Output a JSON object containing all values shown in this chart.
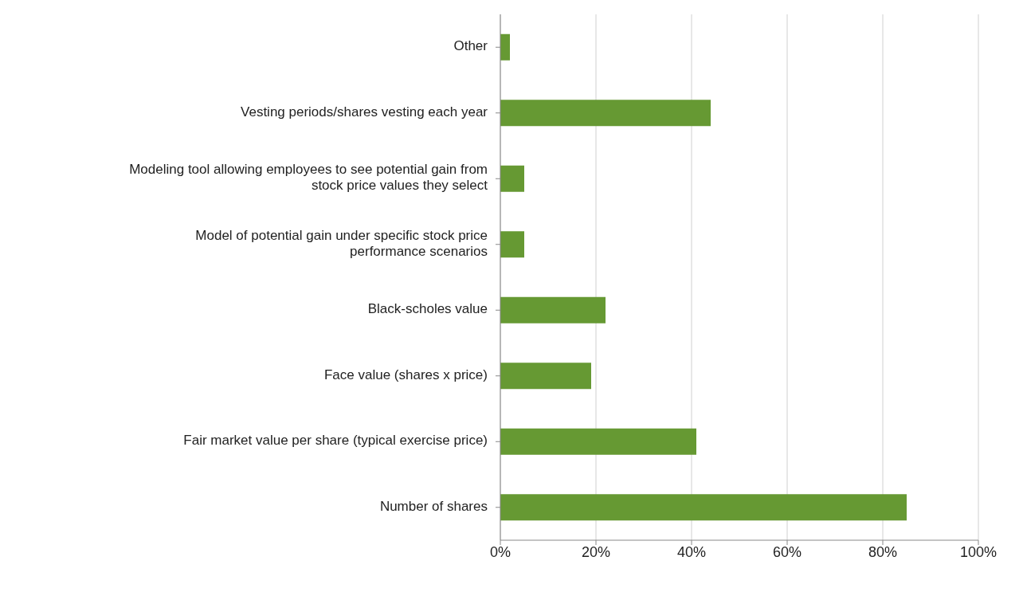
{
  "chart_data": {
    "type": "bar",
    "orientation": "horizontal",
    "categories": [
      "Other",
      "Vesting periods/shares vesting each year",
      "Modeling tool allowing employees to see potential gain from stock price values they select",
      "Model of potential gain under specific stock price performance scenarios",
      "Black-scholes value",
      "Face value (shares x price)",
      "Fair market value per share (typical exercise price)",
      "Number of shares"
    ],
    "values": [
      2,
      44,
      5,
      5,
      22,
      19,
      41,
      85
    ],
    "color": "#669933",
    "xlim": [
      0,
      100
    ],
    "xticks": [
      {
        "value": 0,
        "label": "0%"
      },
      {
        "value": 20,
        "label": "20%"
      },
      {
        "value": 40,
        "label": "40%"
      },
      {
        "value": 60,
        "label": "60%"
      },
      {
        "value": 80,
        "label": "80%"
      },
      {
        "value": 100,
        "label": "100%"
      }
    ],
    "grid": "x"
  }
}
